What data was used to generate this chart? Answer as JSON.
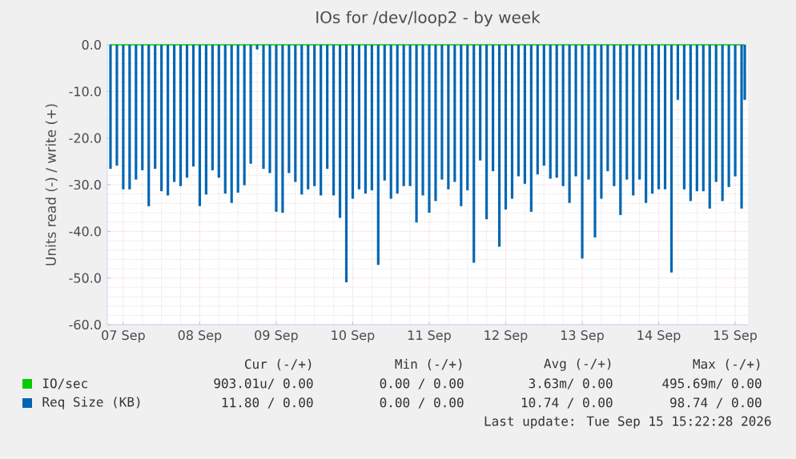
{
  "chart_data": {
    "type": "bar",
    "title": "IOs for /dev/loop2 - by week",
    "ylabel": "Units read (-) / write (+)",
    "xlim": [
      "2026-09-06T19:00",
      "2026-09-15T04:00"
    ],
    "xticks": [
      {
        "value": "2026-09-07",
        "label": "07 Sep"
      },
      {
        "value": "2026-09-08",
        "label": "08 Sep"
      },
      {
        "value": "2026-09-09",
        "label": "09 Sep"
      },
      {
        "value": "2026-09-10",
        "label": "10 Sep"
      },
      {
        "value": "2026-09-11",
        "label": "11 Sep"
      },
      {
        "value": "2026-09-12",
        "label": "12 Sep"
      },
      {
        "value": "2026-09-13",
        "label": "13 Sep"
      },
      {
        "value": "2026-09-14",
        "label": "14 Sep"
      },
      {
        "value": "2026-09-15",
        "label": "15 Sep"
      }
    ],
    "ylim": [
      -60,
      0
    ],
    "yticks": [
      {
        "value": -60,
        "label": "-60.0"
      },
      {
        "value": -50,
        "label": "-50.0"
      },
      {
        "value": -40,
        "label": "-40.0"
      },
      {
        "value": -30,
        "label": "-30.0"
      },
      {
        "value": -20,
        "label": "-20.0"
      },
      {
        "value": -10,
        "label": "-10.0"
      },
      {
        "value": 0,
        "label": "0.0"
      }
    ],
    "grid": true,
    "legend": "bottom",
    "series": [
      {
        "name": "IO/sec",
        "type": "line",
        "color": "#00cc00",
        "x": [
          "2026-09-06T20:00",
          "2026-09-15T03:00"
        ],
        "values": [
          0,
          0
        ]
      },
      {
        "name": "Req Size (KB)",
        "color": "#0066b3",
        "x": [
          "2026-09-06T20:00",
          "2026-09-06T22:00",
          "2026-09-07T00:00",
          "2026-09-07T02:00",
          "2026-09-07T04:00",
          "2026-09-07T06:00",
          "2026-09-07T08:00",
          "2026-09-07T10:00",
          "2026-09-07T12:00",
          "2026-09-07T14:00",
          "2026-09-07T16:00",
          "2026-09-07T18:00",
          "2026-09-07T20:00",
          "2026-09-07T22:00",
          "2026-09-08T00:00",
          "2026-09-08T02:00",
          "2026-09-08T04:00",
          "2026-09-08T06:00",
          "2026-09-08T08:00",
          "2026-09-08T10:00",
          "2026-09-08T12:00",
          "2026-09-08T14:00",
          "2026-09-08T16:00",
          "2026-09-08T18:00",
          "2026-09-08T20:00",
          "2026-09-08T22:00",
          "2026-09-09T00:00",
          "2026-09-09T02:00",
          "2026-09-09T04:00",
          "2026-09-09T06:00",
          "2026-09-09T08:00",
          "2026-09-09T10:00",
          "2026-09-09T12:00",
          "2026-09-09T14:00",
          "2026-09-09T16:00",
          "2026-09-09T18:00",
          "2026-09-09T20:00",
          "2026-09-09T22:00",
          "2026-09-10T00:00",
          "2026-09-10T02:00",
          "2026-09-10T04:00",
          "2026-09-10T06:00",
          "2026-09-10T08:00",
          "2026-09-10T10:00",
          "2026-09-10T12:00",
          "2026-09-10T14:00",
          "2026-09-10T16:00",
          "2026-09-10T18:00",
          "2026-09-10T20:00",
          "2026-09-10T22:00",
          "2026-09-11T00:00",
          "2026-09-11T02:00",
          "2026-09-11T04:00",
          "2026-09-11T06:00",
          "2026-09-11T08:00",
          "2026-09-11T10:00",
          "2026-09-11T12:00",
          "2026-09-11T14:00",
          "2026-09-11T16:00",
          "2026-09-11T18:00",
          "2026-09-11T20:00",
          "2026-09-11T22:00",
          "2026-09-12T00:00",
          "2026-09-12T02:00",
          "2026-09-12T04:00",
          "2026-09-12T06:00",
          "2026-09-12T08:00",
          "2026-09-12T10:00",
          "2026-09-12T12:00",
          "2026-09-12T14:00",
          "2026-09-12T16:00",
          "2026-09-12T18:00",
          "2026-09-12T20:00",
          "2026-09-12T22:00",
          "2026-09-13T00:00",
          "2026-09-13T02:00",
          "2026-09-13T04:00",
          "2026-09-13T06:00",
          "2026-09-13T08:00",
          "2026-09-13T10:00",
          "2026-09-13T12:00",
          "2026-09-13T14:00",
          "2026-09-13T16:00",
          "2026-09-13T18:00",
          "2026-09-13T20:00",
          "2026-09-13T22:00",
          "2026-09-14T00:00",
          "2026-09-14T02:00",
          "2026-09-14T04:00",
          "2026-09-14T06:00",
          "2026-09-14T08:00",
          "2026-09-14T10:00",
          "2026-09-14T12:00",
          "2026-09-14T14:00",
          "2026-09-14T16:00",
          "2026-09-14T18:00",
          "2026-09-14T20:00",
          "2026-09-14T22:00",
          "2026-09-15T00:00",
          "2026-09-15T02:00",
          "2026-09-15T03:00"
        ],
        "values": [
          -26.6,
          -25.9,
          -31.0,
          -31.0,
          -28.9,
          -26.9,
          -34.6,
          -26.6,
          -31.4,
          -32.3,
          -29.4,
          -30.3,
          -28.5,
          -26.1,
          -34.6,
          -32.1,
          -26.9,
          -28.5,
          -31.9,
          -33.9,
          -31.7,
          -30.1,
          -25.5,
          -1.0,
          -26.6,
          -27.5,
          -35.8,
          -36.0,
          -27.5,
          -29.4,
          -32.1,
          -31.0,
          -30.3,
          -32.3,
          -26.6,
          -32.3,
          -37.1,
          -50.9,
          -33.0,
          -31.0,
          -31.9,
          -31.2,
          -47.2,
          -29.1,
          -33.0,
          -31.9,
          -30.3,
          -30.3,
          -38.1,
          -32.3,
          -36.0,
          -33.5,
          -28.9,
          -31.0,
          -29.4,
          -34.6,
          -31.2,
          -46.7,
          -24.8,
          -37.4,
          -27.1,
          -43.3,
          -35.3,
          -33.0,
          -28.2,
          -29.8,
          -35.8,
          -27.8,
          -25.9,
          -28.7,
          -28.5,
          -30.3,
          -33.9,
          -28.2,
          -45.8,
          -28.9,
          -41.3,
          -33.0,
          -27.1,
          -30.3,
          -36.5,
          -28.9,
          -32.3,
          -28.9,
          -33.9,
          -31.9,
          -31.0,
          -31.0,
          -48.8,
          -11.8,
          -31.0,
          -33.5,
          -31.4,
          -31.4,
          -35.1,
          -29.4,
          -33.5,
          -30.5,
          -28.2,
          -35.1,
          -11.8
        ]
      }
    ],
    "annotations": [
      "Cur (-/+)",
      "Min (-/+)",
      "Avg (-/+)",
      "Max (-/+)",
      "903.01u/ 0.00",
      "0.00 / 0.00",
      "3.63m/ 0.00",
      "495.69m/ 0.00",
      "11.80 / 0.00",
      "0.00 / 0.00",
      "10.74 / 0.00",
      "98.74 / 0.00",
      "Last update: Tue Sep 15 15:22:28 2026"
    ]
  }
}
